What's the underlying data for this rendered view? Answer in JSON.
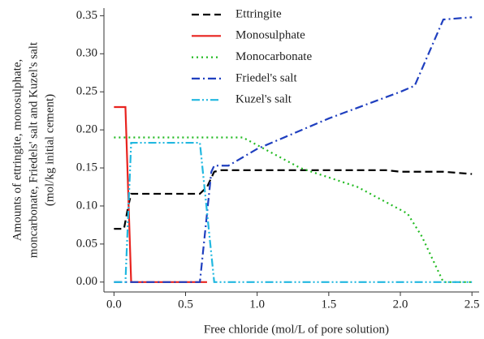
{
  "chart_data": {
    "type": "line",
    "x_label": "Free chloride (mol/L of pore solution)",
    "y_label": [
      "Amounts of ettringite, monosulphate,",
      "moncarbonate, Friedels' salt and Kuzel's salt",
      "(mol/kg initial cement)"
    ],
    "xlim": [
      -0.07,
      2.55
    ],
    "ylim": [
      -0.013,
      0.36
    ],
    "xticks": [
      {
        "value": 0,
        "label": "0.0"
      },
      {
        "value": 0.5,
        "label": "0.5"
      },
      {
        "value": 1,
        "label": "1.0"
      },
      {
        "value": 1.5,
        "label": "1.5"
      },
      {
        "value": 2,
        "label": "2.0"
      },
      {
        "value": 2.5,
        "label": "2.5"
      }
    ],
    "yticks": [
      {
        "value": 0,
        "label": "0.00"
      },
      {
        "value": 0.05,
        "label": "0.05"
      },
      {
        "value": 0.1,
        "label": "0.10"
      },
      {
        "value": 0.15,
        "label": "0.15"
      },
      {
        "value": 0.2,
        "label": "0.20"
      },
      {
        "value": 0.25,
        "label": "0.25"
      },
      {
        "value": 0.3,
        "label": "0.30"
      },
      {
        "value": 0.35,
        "label": "0.35"
      }
    ],
    "series": [
      {
        "name": "Ettringite",
        "color": "#000000",
        "line_style": "dashed",
        "x": [
          0,
          0.07,
          0.1,
          0.12,
          0.6,
          0.65,
          0.7,
          0.75,
          1.9,
          2.0,
          2.3,
          2.5
        ],
        "values": [
          0.07,
          0.07,
          0.1,
          0.116,
          0.116,
          0.125,
          0.145,
          0.147,
          0.147,
          0.145,
          0.145,
          0.142
        ]
      },
      {
        "name": "Monosulphate",
        "color": "#e8231f",
        "line_style": "solid",
        "x": [
          0,
          0.08,
          0.12,
          0.65
        ],
        "values": [
          0.23,
          0.23,
          0,
          0
        ]
      },
      {
        "name": "Monocarbonate",
        "color": "#22bb22",
        "line_style": "dotted",
        "x": [
          0,
          0.9,
          1.3,
          1.7,
          2.05,
          2.15,
          2.3,
          2.5
        ],
        "values": [
          0.19,
          0.19,
          0.15,
          0.125,
          0.09,
          0.06,
          0,
          0
        ]
      },
      {
        "name": "Friedel's salt",
        "color": "#1f3fbf",
        "line_style": "dashdot",
        "x": [
          0,
          0.6,
          0.68,
          0.7,
          0.8,
          1.0,
          1.5,
          2.0,
          2.1,
          2.3,
          2.5
        ],
        "values": [
          0,
          0,
          0.145,
          0.153,
          0.153,
          0.175,
          0.215,
          0.25,
          0.258,
          0.345,
          0.348
        ]
      },
      {
        "name": "Kuzel's salt",
        "color": "#22b8e0",
        "line_style": "dashdotdot",
        "x": [
          0,
          0.08,
          0.12,
          0.6,
          0.7,
          2.5
        ],
        "values": [
          0,
          0,
          0.183,
          0.183,
          0,
          0
        ]
      }
    ]
  }
}
